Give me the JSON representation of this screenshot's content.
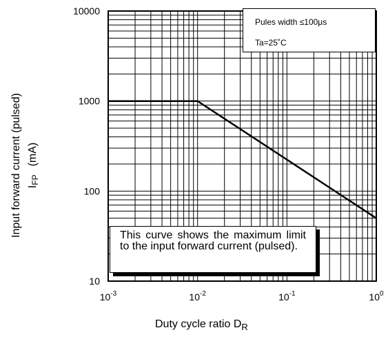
{
  "chart_data": {
    "type": "line",
    "xscale": "log",
    "yscale": "log",
    "xlim": [
      0.001,
      1
    ],
    "ylim": [
      10,
      10000
    ],
    "grid": true,
    "x_ticks": [
      {
        "base": "10",
        "exp": "-3",
        "value": 0.001
      },
      {
        "base": "10",
        "exp": "-2",
        "value": 0.01
      },
      {
        "base": "10",
        "exp": "-1",
        "value": 0.1
      },
      {
        "base": "10",
        "exp": "0",
        "value": 1
      }
    ],
    "y_ticks": [
      {
        "label": "10000",
        "value": 10000
      },
      {
        "label": "1000",
        "value": 1000
      },
      {
        "label": "100",
        "value": 100
      },
      {
        "label": "10",
        "value": 10
      }
    ],
    "xlabel": {
      "text": "Duty cycle ratio   D",
      "sub": "R"
    },
    "ylabel": {
      "line1": "Input forward current (pulsed)",
      "line2_main": "I",
      "line2_sub": "FP",
      "line2_unit": "(mA)"
    },
    "series": [
      {
        "x": [
          0.001,
          0.01,
          1
        ],
        "y": [
          1000,
          1000,
          50
        ]
      }
    ],
    "legend_box": {
      "line1": "Pules width ≤100μs",
      "line2": "Ta=25˚C"
    },
    "note": "This curve shows the maximum limit to the input forward current (pulsed)."
  }
}
